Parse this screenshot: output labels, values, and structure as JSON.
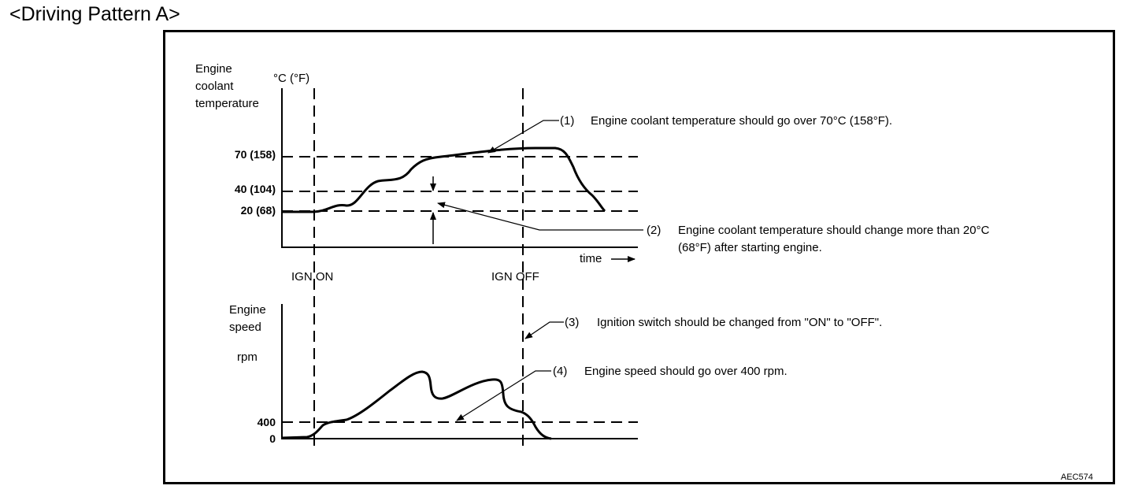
{
  "title": "<Driving Pattern A>",
  "diagram_code": "AEC574",
  "temp_chart": {
    "ylabel_lines": [
      "Engine",
      "coolant",
      "temperature"
    ],
    "unit": "°C (°F)",
    "ticks": [
      "70 (158)",
      "40 (104)",
      "20 (68)"
    ],
    "xlabel": "time",
    "ign_on": "IGN ON",
    "ign_off": "IGN OFF"
  },
  "speed_chart": {
    "ylabel_lines": [
      "Engine",
      "speed"
    ],
    "unit": "rpm",
    "ticks": [
      "400",
      "0"
    ]
  },
  "notes": [
    {
      "num": "(1)",
      "lines": [
        "Engine coolant temperature should go over 70°C (158°F)."
      ]
    },
    {
      "num": "(2)",
      "lines": [
        "Engine coolant temperature should change more than 20°C",
        "(68°F) after starting engine."
      ]
    },
    {
      "num": "(3)",
      "lines": [
        "Ignition switch should be changed from \"ON\" to \"OFF\"."
      ]
    },
    {
      "num": "(4)",
      "lines": [
        "Engine speed should go over 400 rpm."
      ]
    }
  ]
}
